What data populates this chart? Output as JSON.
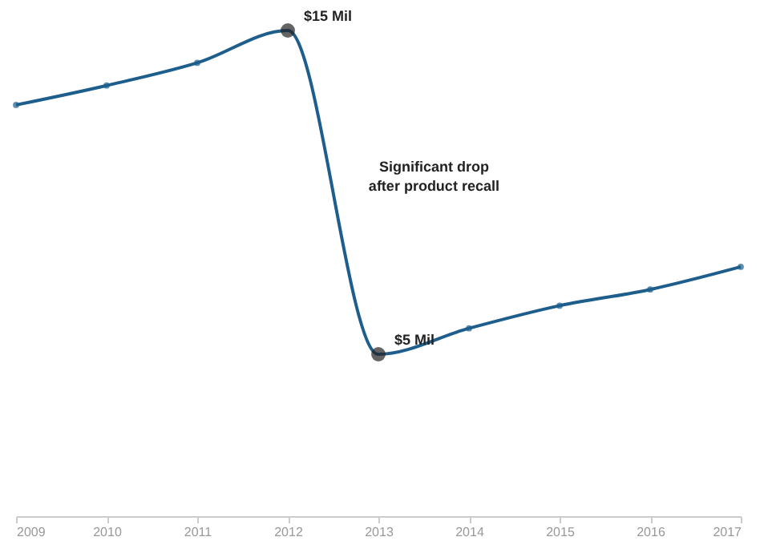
{
  "chart_data": {
    "type": "line",
    "x": [
      2009,
      2010,
      2011,
      2012,
      2013,
      2014,
      2015,
      2016,
      2017
    ],
    "series": [
      {
        "color": "#1d5e8c",
        "values": [
          12.7,
          13.3,
          14.0,
          15,
          5,
          5.8,
          6.5,
          7.0,
          7.7
        ],
        "value_labels": [
          null,
          null,
          null,
          "$15 Mil",
          "$5 Mil",
          null,
          null,
          null,
          null
        ]
      }
    ],
    "xlim": [
      2009,
      2017
    ],
    "xticks": [
      2009,
      2010,
      2011,
      2012,
      2013,
      2014,
      2015,
      2016,
      2017
    ],
    "annotations": [
      "Significant drop after product recall"
    ],
    "grid": false,
    "marker": "circle",
    "line_style": "solid"
  }
}
